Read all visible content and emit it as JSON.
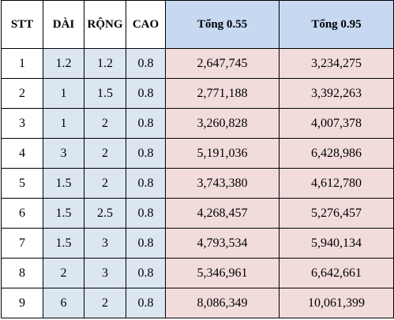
{
  "headers": {
    "stt": "STT",
    "dai": "DÀI",
    "rong": "RỘNG",
    "cao": "CAO",
    "tong_055": "Tổng 0.55",
    "tong_095": "Tổng 0.95"
  },
  "colors": {
    "header_total_bg": "#c6d9f1",
    "dimension_bg": "#dce6f1",
    "total_bg": "#f2dcdb",
    "border": "#000000"
  },
  "rows": [
    {
      "stt": "1",
      "dai": "1.2",
      "rong": "1.2",
      "cao": "0.8",
      "tong_055": "2,647,745",
      "tong_095": "3,234,275"
    },
    {
      "stt": "2",
      "dai": "1",
      "rong": "1.5",
      "cao": "0.8",
      "tong_055": "2,771,188",
      "tong_095": "3,392,263"
    },
    {
      "stt": "3",
      "dai": "1",
      "rong": "2",
      "cao": "0.8",
      "tong_055": "3,260,828",
      "tong_095": "4,007,378"
    },
    {
      "stt": "4",
      "dai": "3",
      "rong": "2",
      "cao": "0.8",
      "tong_055": "5,191,036",
      "tong_095": "6,428,986"
    },
    {
      "stt": "5",
      "dai": "1.5",
      "rong": "2",
      "cao": "0.8",
      "tong_055": "3,743,380",
      "tong_095": "4,612,780"
    },
    {
      "stt": "6",
      "dai": "1.5",
      "rong": "2.5",
      "cao": "0.8",
      "tong_055": "4,268,457",
      "tong_095": "5,276,457"
    },
    {
      "stt": "7",
      "dai": "1.5",
      "rong": "3",
      "cao": "0.8",
      "tong_055": "4,793,534",
      "tong_095": "5,940,134"
    },
    {
      "stt": "8",
      "dai": "2",
      "rong": "3",
      "cao": "0.8",
      "tong_055": "5,346,961",
      "tong_095": "6,642,661"
    },
    {
      "stt": "9",
      "dai": "6",
      "rong": "2",
      "cao": "0.8",
      "tong_055": "8,086,349",
      "tong_095": "10,061,399"
    }
  ]
}
